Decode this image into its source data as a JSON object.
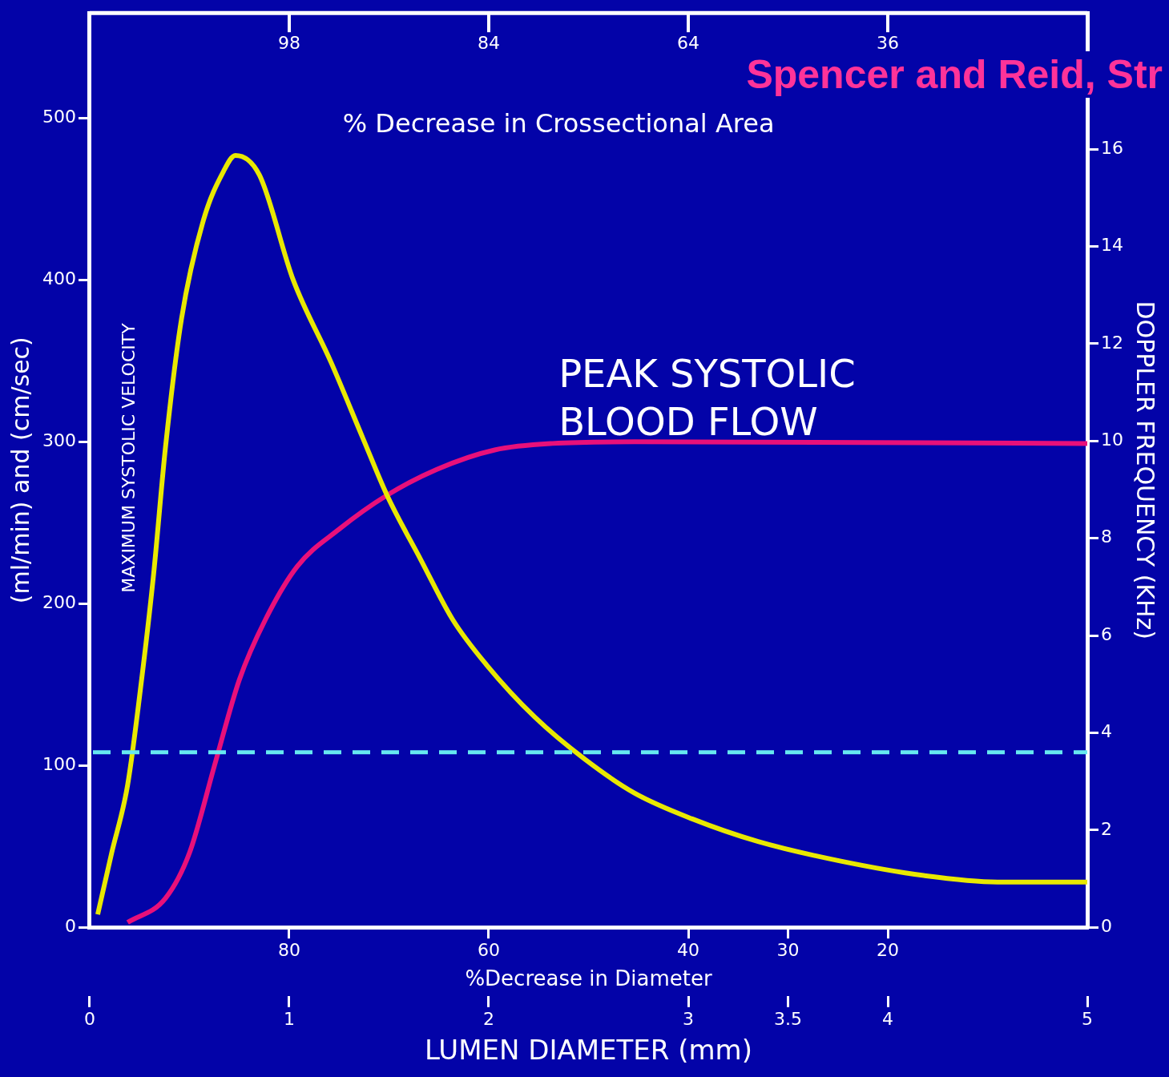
{
  "chart_data": {
    "type": "line",
    "xlabel": "LUMEN DIAMETER (mm)",
    "ylabel": "(ml/min) and (cm/sec)",
    "y2label": "DOPPLER FREQUENCY (KHz)",
    "x2label": "%Decrease in Diameter",
    "xlim": [
      0,
      5
    ],
    "xticks": [
      0,
      1,
      2,
      3,
      3.5,
      4,
      5
    ],
    "x2lim": [
      100,
      0
    ],
    "x2ticks": [
      80,
      60,
      40,
      30,
      20
    ],
    "ylim": [
      0,
      565
    ],
    "yticks": [
      0,
      100,
      200,
      300,
      400,
      500
    ],
    "y2lim": [
      0,
      18.8
    ],
    "y2ticks": [
      0,
      2,
      4,
      6,
      8,
      10,
      12,
      14,
      16
    ],
    "grid": false,
    "legend": false,
    "marker": "none",
    "series": [
      {
        "name": "MAXIMUM SYSTOLIC VELOCITY",
        "color": "#e8e800",
        "x": [
          0.04,
          0.11,
          0.19,
          0.26,
          0.32,
          0.38,
          0.46,
          0.57,
          0.67,
          0.73,
          0.85,
          1.02,
          1.21,
          1.37,
          1.49,
          1.66,
          1.82,
          1.99,
          2.23,
          2.48,
          2.73,
          3.02,
          3.35,
          3.76,
          4.18,
          4.55,
          5
        ],
        "values": [
          8,
          46,
          88,
          153,
          218,
          297,
          376,
          437,
          467,
          477,
          465,
          400,
          349,
          302,
          267,
          227,
          190,
          162,
          130,
          104,
          83,
          67,
          53,
          41,
          32,
          28,
          28
        ]
      },
      {
        "name": "PEAK SYSTOLIC\nBLOOD FLOW",
        "color": "#e8107a",
        "x": [
          0.19,
          0.38,
          0.5,
          0.63,
          0.75,
          0.88,
          1.04,
          1.25,
          1.49,
          1.74,
          2.03,
          2.32,
          2.73,
          5
        ],
        "values": [
          3,
          18,
          46,
          102,
          153,
          190,
          223,
          246,
          267,
          283,
          295,
          299,
          300,
          299
        ]
      }
    ],
    "ref_lines": [
      {
        "axis": "y2",
        "value": 3.6,
        "color": "#66e8f0",
        "line_style": "dashed"
      }
    ],
    "annotations": [
      "98",
      "84",
      "64",
      "36",
      "% Decrease in Crossectional Area",
      "Spencer and Reid, Str"
    ]
  }
}
